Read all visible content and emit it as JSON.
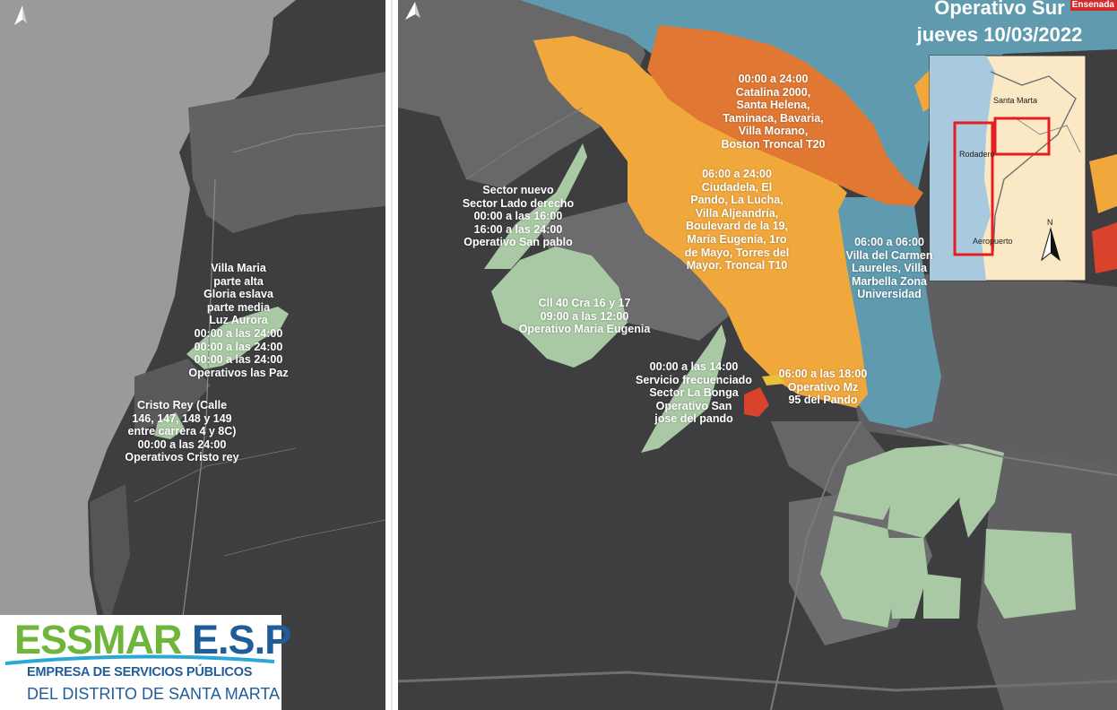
{
  "title": {
    "line1": "Operativo Sur",
    "line2": "jueves 10/03/2022"
  },
  "corner_place": "Ensenada",
  "inset": {
    "places": [
      "Santa Marta",
      "Rodadero",
      "Aeropuerto"
    ],
    "north_label": "N"
  },
  "labels": {
    "villa_maria": "Villa Maria\nparte alta\nGloria eslava\nparte media\nLuz Aurora\n00:00 a las 24:00\n00:00 a las 24:00\n00:00 a las 24:00\nOperativos las Paz",
    "cristo_rey": "Cristo Rey (Calle\n146, 147, 148 y 149\nentre carrera 4 y 8C)\n00:00 a las 24:00\nOperativos Cristo rey",
    "sector_nuevo": "Sector nuevo\nSector Lado derecho\n00:00 a las 16:00\n16:00 a las 24:00\nOperativo San pablo",
    "catalina": "00:00 a 24:00\nCatalina 2000,\nSanta Helena,\nTaminaca, Bavaria,\nVilla Morano,\nBoston Troncal T20",
    "ciudadela": "06:00 a 24:00\nCiudadela, El\nPando, La Lucha,\nVilla Aljeandría,\nBoulevard de la 19,\nMaría Eugenía, 1ro\nde Mayo, Torres del\nMayor. Troncal T10",
    "villa_carmen": "06:00 a 06:00\nVilla del Carmen\nLaureles, Villa\nMarbella Zona\nUniversidad",
    "cll40": "Cll 40 Cra 16 y 17\n09:00 a las 12:00\nOperativo Maria Eugenia",
    "la_bonga": "00:00 a las 14:00\nServicio frecuenciado\nSector La Bonga\nOperativo San\njose del pando",
    "mz95": "06:00 a las 18:00\nOperativo Mz\n95 del Pando"
  },
  "logo": {
    "main_part1": "ESSMAR",
    "main_part2": " E.S.P",
    "sub1": "EMPRESA DE SERVICIOS PÚBLICOS",
    "sub2": "DEL DISTRITO DE SANTA MARTA"
  },
  "colors": {
    "orange_zone": "#f0a83d",
    "dark_orange_zone": "#e07833",
    "blue_zone": "#5f9aae",
    "green_zone": "#a9c9a4",
    "red_zone": "#d9432c",
    "yellow_zone": "#e8c23a",
    "map_dark": "#3e3e41",
    "map_mid": "#686869",
    "sea": "#9a9a9a",
    "logo_green": "#6fb53a",
    "logo_blue": "#1f5d99",
    "inset_land": "#fbe8c4",
    "inset_frame": "#e41e1e"
  }
}
